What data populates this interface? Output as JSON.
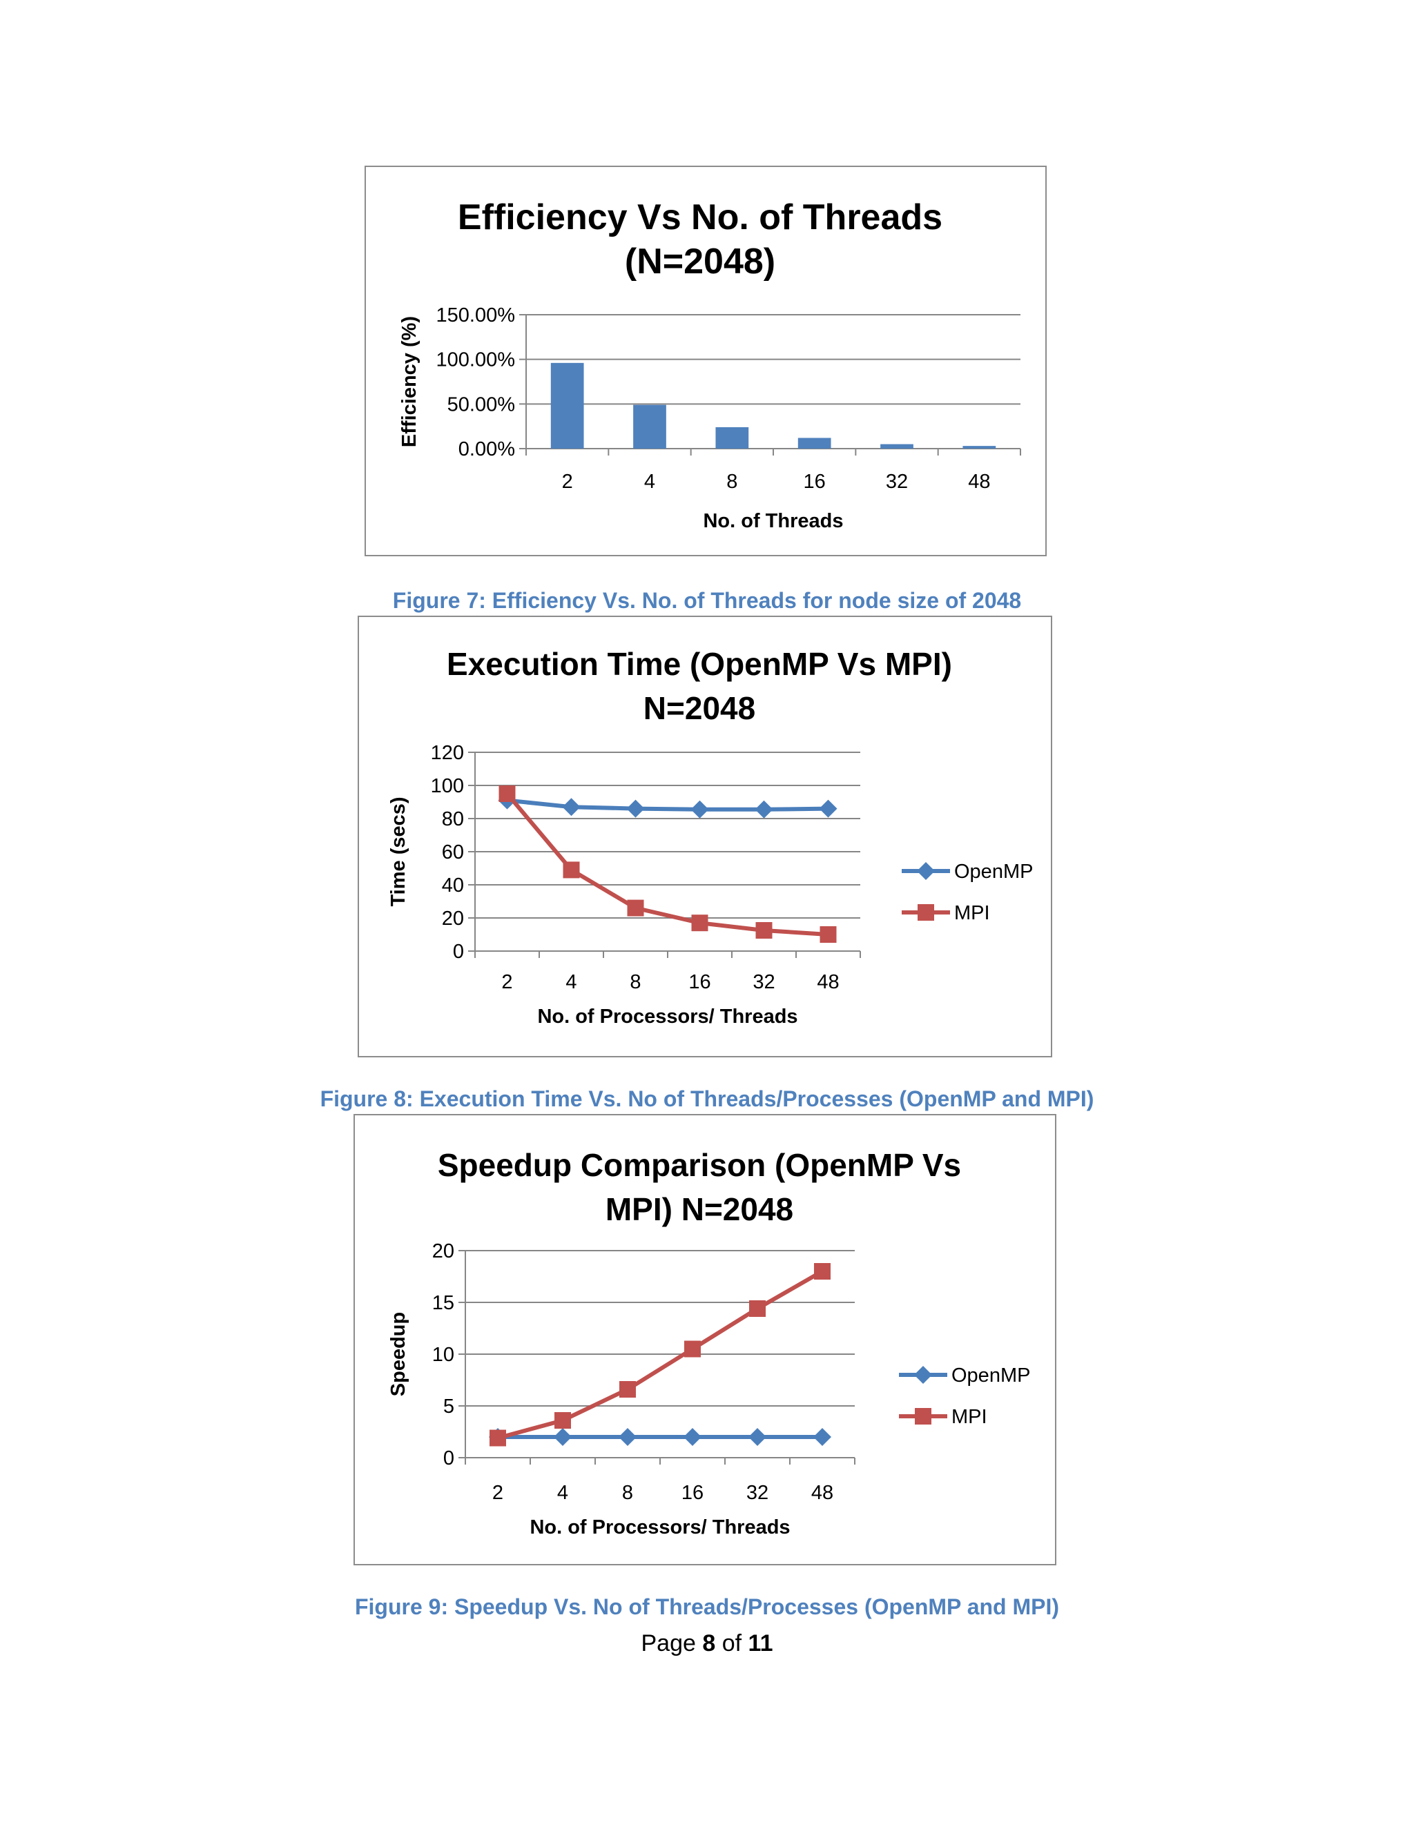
{
  "colors": {
    "openmp": "#4a7ebb",
    "mpi": "#c0504d",
    "bar": "#4f81bd",
    "caption": "#4f81bd",
    "grid": "#868686"
  },
  "chart_data": [
    {
      "type": "bar",
      "title_lines": [
        "Efficiency Vs No. of Threads",
        "(N=2048)"
      ],
      "xlabel": "No. of Threads",
      "ylabel": "Efficiency (%)",
      "categories": [
        "2",
        "4",
        "8",
        "16",
        "32",
        "48"
      ],
      "values": [
        96,
        49,
        24,
        12,
        5,
        3
      ],
      "ylim": [
        0,
        150
      ],
      "yticks": [
        0,
        50,
        100,
        150
      ],
      "ytick_labels": [
        "0.00%",
        "50.00%",
        "100.00%",
        "150.00%"
      ],
      "grid": true,
      "legend": "none",
      "caption": "Figure 7: Efficiency Vs. No. of Threads for node size of 2048"
    },
    {
      "type": "line",
      "title_lines": [
        "Execution Time (OpenMP Vs MPI)",
        "N=2048"
      ],
      "xlabel": "No. of Processors/ Threads",
      "ylabel": "Time (secs)",
      "categories": [
        "2",
        "4",
        "8",
        "16",
        "32",
        "48"
      ],
      "series": [
        {
          "name": "OpenMP",
          "values": [
            91,
            87,
            86,
            85.5,
            85.5,
            86
          ],
          "marker": "diamond"
        },
        {
          "name": "MPI",
          "values": [
            95,
            49,
            26,
            17,
            12.5,
            10
          ],
          "marker": "square"
        }
      ],
      "ylim": [
        0,
        120
      ],
      "yticks": [
        0,
        20,
        40,
        60,
        80,
        100,
        120
      ],
      "ytick_labels": [
        "0",
        "20",
        "40",
        "60",
        "80",
        "100",
        "120"
      ],
      "grid": true,
      "legend": "right",
      "caption": "Figure 8: Execution Time Vs. No of Threads/Processes (OpenMP and MPI)"
    },
    {
      "type": "line",
      "title_lines": [
        "Speedup Comparison (OpenMP Vs",
        "MPI) N=2048"
      ],
      "xlabel": "No. of Processors/ Threads",
      "ylabel": "Speedup",
      "categories": [
        "2",
        "4",
        "8",
        "16",
        "32",
        "48"
      ],
      "series": [
        {
          "name": "OpenMP",
          "values": [
            2,
            2,
            2,
            2,
            2,
            2
          ],
          "marker": "diamond"
        },
        {
          "name": "MPI",
          "values": [
            1.9,
            3.6,
            6.6,
            10.5,
            14.4,
            18
          ],
          "marker": "square"
        }
      ],
      "ylim": [
        0,
        20
      ],
      "yticks": [
        0,
        5,
        10,
        15,
        20
      ],
      "ytick_labels": [
        "0",
        "5",
        "10",
        "15",
        "20"
      ],
      "grid": true,
      "legend": "right",
      "caption": "Figure 9: Speedup Vs. No of Threads/Processes (OpenMP and MPI)"
    }
  ],
  "footer": {
    "page_word": "Page",
    "current": "8",
    "of_word": "of",
    "total": "11"
  }
}
